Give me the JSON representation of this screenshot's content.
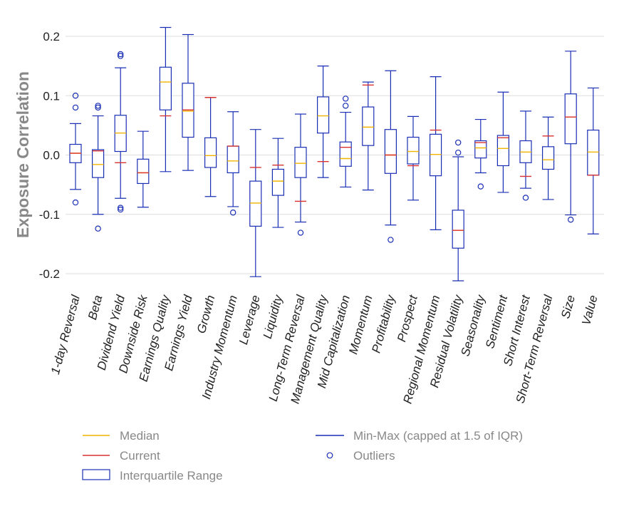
{
  "colors": {
    "box": "#1a2eb5",
    "median": "#f0b400",
    "current": "#d93030",
    "grid": "#dddddd",
    "legend_text": "#888888",
    "tick_text": "#222222"
  },
  "chart_data": {
    "type": "box",
    "ylabel": "Exposure Correlation",
    "xlabel": "",
    "title": "",
    "ylim": [
      -0.235,
      0.235
    ],
    "yticks": [
      0.2,
      0.1,
      0.0,
      -0.1,
      -0.2
    ],
    "ytick_labels": [
      "0.2",
      "0.1",
      "0.0",
      "-0.1",
      "-0.2"
    ],
    "grid": true,
    "legend_position": "bottom",
    "legend": [
      {
        "key": "median",
        "label": "Median"
      },
      {
        "key": "current",
        "label": "Current"
      },
      {
        "key": "iqr",
        "label": "Interquartile Range"
      },
      {
        "key": "whisker",
        "label": "Min-Max (capped at 1.5 of IQR)"
      },
      {
        "key": "outliers",
        "label": "Outliers"
      }
    ],
    "boxes": [
      {
        "label": "1-day Reversal",
        "min": -0.058,
        "q1": -0.013,
        "median": 0.003,
        "q3": 0.018,
        "max": 0.053,
        "current": 0.003,
        "outliers": [
          0.1,
          0.08,
          -0.08
        ]
      },
      {
        "label": "Beta",
        "min": -0.1,
        "q1": -0.038,
        "median": -0.016,
        "q3": 0.009,
        "max": 0.066,
        "current": 0.007,
        "outliers": [
          0.083,
          0.08,
          -0.124
        ]
      },
      {
        "label": "Dividend Yield",
        "min": -0.073,
        "q1": 0.006,
        "median": 0.037,
        "q3": 0.067,
        "max": 0.147,
        "current": -0.013,
        "outliers": [
          0.17,
          0.167,
          -0.089,
          -0.092
        ]
      },
      {
        "label": "Downside Risk",
        "min": -0.088,
        "q1": -0.048,
        "median": -0.03,
        "q3": -0.007,
        "max": 0.04,
        "current": -0.03,
        "outliers": []
      },
      {
        "label": "Earnings Quality",
        "min": -0.028,
        "q1": 0.076,
        "median": 0.123,
        "q3": 0.148,
        "max": 0.215,
        "current": 0.066,
        "outliers": []
      },
      {
        "label": "Earnings Yield",
        "min": -0.026,
        "q1": 0.03,
        "median": 0.074,
        "q3": 0.121,
        "max": 0.203,
        "current": 0.076,
        "outliers": []
      },
      {
        "label": "Growth",
        "min": -0.07,
        "q1": -0.021,
        "median": -0.001,
        "q3": 0.029,
        "max": 0.097,
        "current": 0.097,
        "outliers": []
      },
      {
        "label": "Industry Momentum",
        "min": -0.087,
        "q1": -0.03,
        "median": -0.01,
        "q3": 0.015,
        "max": 0.073,
        "current": 0.015,
        "outliers": [
          -0.097
        ]
      },
      {
        "label": "Leverage",
        "min": -0.205,
        "q1": -0.12,
        "median": -0.081,
        "q3": -0.044,
        "max": 0.043,
        "current": -0.021,
        "outliers": []
      },
      {
        "label": "Liquidity",
        "min": -0.122,
        "q1": -0.068,
        "median": -0.044,
        "q3": -0.024,
        "max": 0.028,
        "current": -0.017,
        "outliers": []
      },
      {
        "label": "Long-Term Reversal",
        "min": -0.113,
        "q1": -0.038,
        "median": -0.014,
        "q3": 0.013,
        "max": 0.069,
        "current": -0.078,
        "outliers": [
          -0.131
        ]
      },
      {
        "label": "Management Quality",
        "min": -0.038,
        "q1": 0.037,
        "median": 0.066,
        "q3": 0.098,
        "max": 0.15,
        "current": -0.011,
        "outliers": []
      },
      {
        "label": "Mid Capitalization",
        "min": -0.054,
        "q1": -0.019,
        "median": -0.006,
        "q3": 0.022,
        "max": 0.072,
        "current": 0.013,
        "outliers": [
          0.095,
          0.083
        ]
      },
      {
        "label": "Momentum",
        "min": -0.059,
        "q1": 0.016,
        "median": 0.047,
        "q3": 0.081,
        "max": 0.123,
        "current": 0.118,
        "outliers": []
      },
      {
        "label": "Profitability",
        "min": -0.118,
        "q1": -0.031,
        "median": 0.0,
        "q3": 0.043,
        "max": 0.142,
        "current": 0.0,
        "outliers": [
          -0.143
        ]
      },
      {
        "label": "Prospect",
        "min": -0.076,
        "q1": -0.015,
        "median": 0.006,
        "q3": 0.03,
        "max": 0.065,
        "current": -0.018,
        "outliers": []
      },
      {
        "label": "Regional Momentum",
        "min": -0.126,
        "q1": -0.035,
        "median": 0.001,
        "q3": 0.035,
        "max": 0.132,
        "current": 0.042,
        "outliers": []
      },
      {
        "label": "Residual Volatility",
        "min": -0.212,
        "q1": -0.157,
        "median": -0.127,
        "q3": -0.093,
        "max": -0.003,
        "current": -0.127,
        "outliers": [
          0.021,
          0.004
        ]
      },
      {
        "label": "Seasonality",
        "min": -0.03,
        "q1": -0.005,
        "median": 0.012,
        "q3": 0.024,
        "max": 0.06,
        "current": 0.021,
        "outliers": [
          -0.053
        ]
      },
      {
        "label": "Sentiment",
        "min": -0.063,
        "q1": -0.018,
        "median": 0.011,
        "q3": 0.033,
        "max": 0.106,
        "current": 0.029,
        "outliers": []
      },
      {
        "label": "Short Interest",
        "min": -0.056,
        "q1": -0.013,
        "median": 0.005,
        "q3": 0.024,
        "max": 0.074,
        "current": -0.036,
        "outliers": [
          -0.072
        ]
      },
      {
        "label": "Short-Term Reversal",
        "min": -0.075,
        "q1": -0.024,
        "median": -0.008,
        "q3": 0.014,
        "max": 0.064,
        "current": 0.032,
        "outliers": []
      },
      {
        "label": "Size",
        "min": -0.101,
        "q1": 0.019,
        "median": 0.064,
        "q3": 0.103,
        "max": 0.175,
        "current": 0.064,
        "outliers": [
          -0.109
        ]
      },
      {
        "label": "Value",
        "min": -0.133,
        "q1": -0.034,
        "median": 0.005,
        "q3": 0.042,
        "max": 0.113,
        "current": -0.034,
        "outliers": []
      }
    ]
  }
}
